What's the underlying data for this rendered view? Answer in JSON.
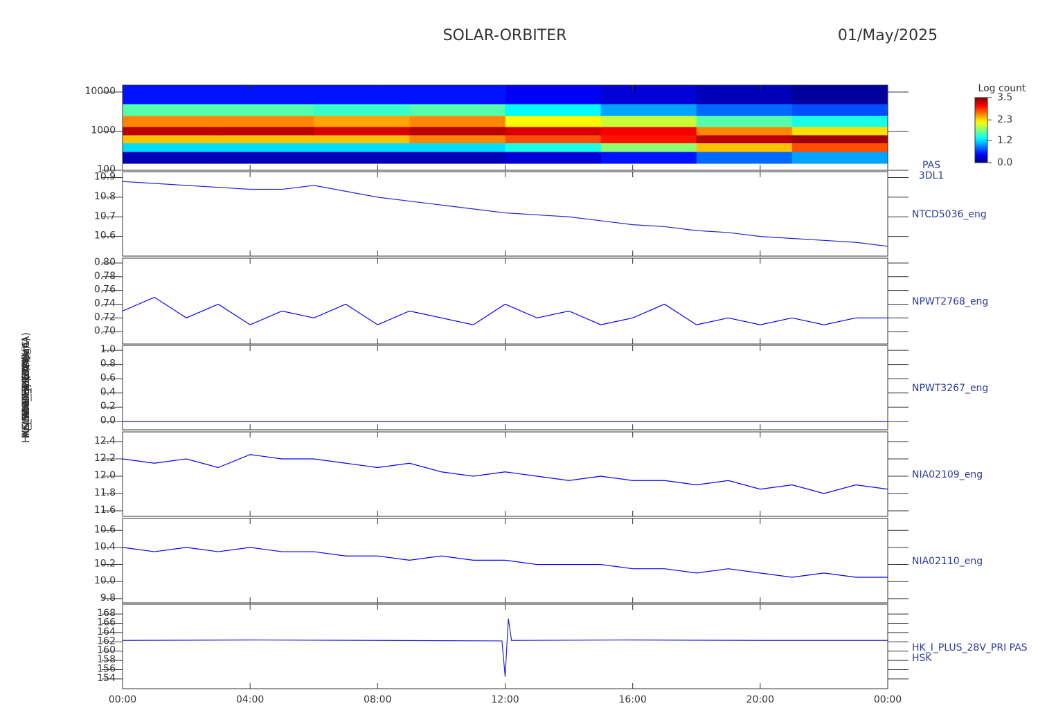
{
  "header": {
    "title": "SOLAR-ORBITER",
    "date": "01/May/2025"
  },
  "time_axis": {
    "xlim": [
      0,
      24
    ],
    "xticks": [
      {
        "value": 0,
        "label": "00:00"
      },
      {
        "value": 4,
        "label": "04:00"
      },
      {
        "value": 8,
        "label": "08:00"
      },
      {
        "value": 12,
        "label": "12:00"
      },
      {
        "value": 16,
        "label": "16:00"
      },
      {
        "value": 20,
        "label": "20:00"
      },
      {
        "value": 24,
        "label": "00:00"
      }
    ]
  },
  "chart_data": [
    {
      "type": "heatmap",
      "y_label": "Energy (eV)",
      "right_label": [
        "PAS",
        "3DL1"
      ],
      "log_y": true,
      "ylim": [
        100,
        15000
      ],
      "yticks": [
        100,
        1000,
        10000
      ],
      "x": [
        0,
        3,
        6,
        9,
        12,
        15,
        18,
        21,
        24
      ],
      "y_edges": [
        150,
        300,
        500,
        800,
        1300,
        2500,
        5000,
        15000
      ],
      "values": [
        [
          0.2,
          0.2,
          0.2,
          0.2,
          0.3,
          0.5,
          0.8,
          1.0
        ],
        [
          1.2,
          1.2,
          1.2,
          1.2,
          1.4,
          1.8,
          2.4,
          2.8
        ],
        [
          2.4,
          2.4,
          2.4,
          2.6,
          2.8,
          3.0,
          3.3,
          3.4
        ],
        [
          3.3,
          3.3,
          3.2,
          3.3,
          3.2,
          3.1,
          2.6,
          2.3
        ],
        [
          2.6,
          2.6,
          2.5,
          2.6,
          2.2,
          2.0,
          1.6,
          1.4
        ],
        [
          1.6,
          1.6,
          1.5,
          1.6,
          1.3,
          1.0,
          0.8,
          0.7
        ],
        [
          0.5,
          0.5,
          0.5,
          0.5,
          0.4,
          0.3,
          0.2,
          0.1
        ]
      ],
      "colorbar": {
        "label": "Log count",
        "zlim": [
          0,
          3.5
        ],
        "zticks": [
          {
            "value": 0,
            "label": "0.0"
          },
          {
            "value": 1.2,
            "label": "1.2"
          },
          {
            "value": 2.3,
            "label": "2.3"
          },
          {
            "value": 3.5,
            "label": "3.5"
          }
        ]
      }
    },
    {
      "type": "line",
      "y_label": "Approx Temp (DegC)",
      "ylim": [
        10.5,
        10.93
      ],
      "yticks": [
        10.6,
        10.7,
        10.8,
        10.9
      ],
      "x": [
        0,
        1,
        2,
        3,
        4,
        5,
        6,
        7,
        8,
        9,
        10,
        11,
        12,
        13,
        14,
        15,
        16,
        17,
        18,
        19,
        20,
        21,
        22,
        23,
        24
      ],
      "series": [
        {
          "name": "NTCD5036_eng",
          "color": "#2222cc",
          "values": [
            10.88,
            10.87,
            10.86,
            10.85,
            10.84,
            10.84,
            10.86,
            10.83,
            10.8,
            10.78,
            10.76,
            10.74,
            10.72,
            10.71,
            10.7,
            10.68,
            10.66,
            10.65,
            10.63,
            10.62,
            10.6,
            10.59,
            10.58,
            10.57,
            10.55
          ]
        }
      ]
    },
    {
      "type": "line",
      "y_label": "SWA-EAS TOP (V)",
      "ylim": [
        0.682,
        0.807
      ],
      "yticks": [
        {
          "value": 0.7,
          "label": "0.70"
        },
        {
          "value": 0.72,
          "label": "0.72"
        },
        {
          "value": 0.74,
          "label": "0.74"
        },
        {
          "value": 0.76,
          "label": "0.76"
        },
        {
          "value": 0.78,
          "label": "0.78"
        },
        {
          "value": 0.8,
          "label": "0.80"
        }
      ],
      "x": [
        0,
        1,
        2,
        3,
        4,
        5,
        6,
        7,
        8,
        9,
        10,
        11,
        12,
        13,
        14,
        15,
        16,
        17,
        18,
        19,
        20,
        21,
        22,
        23,
        24
      ],
      "series": [
        {
          "name": "NPWT2768_eng",
          "color": "#0000ff",
          "values": [
            0.73,
            0.75,
            0.72,
            0.74,
            0.71,
            0.73,
            0.72,
            0.74,
            0.71,
            0.73,
            0.72,
            0.71,
            0.74,
            0.72,
            0.73,
            0.71,
            0.72,
            0.74,
            0.71,
            0.72,
            0.71,
            0.72,
            0.71,
            0.72,
            0.72
          ]
        }
      ]
    },
    {
      "type": "line",
      "y_label": "SWA-EAS2 (V)",
      "ylim": [
        -0.12,
        1.07
      ],
      "yticks": [
        {
          "value": 0,
          "label": "0.0"
        },
        0.2,
        0.4,
        0.6,
        0.8,
        {
          "value": 1,
          "label": "1.0"
        }
      ],
      "x": [
        0,
        24
      ],
      "series": [
        {
          "name": "NPWT3267_eng",
          "color": "#0000ff",
          "values": [
            0,
            0
          ]
        }
      ]
    },
    {
      "type": "line",
      "y_label": "HK_IMON_THERM (mA)",
      "ylim": [
        11.536,
        12.512
      ],
      "yticks": [
        11.6,
        11.8,
        {
          "value": 12,
          "label": "12.0"
        },
        12.2,
        12.4
      ],
      "x": [
        0,
        1,
        2,
        3,
        4,
        5,
        6,
        7,
        8,
        9,
        10,
        11,
        12,
        13,
        14,
        15,
        16,
        17,
        18,
        19,
        20,
        21,
        22,
        23,
        24
      ],
      "series": [
        {
          "name": "NIA02109_eng",
          "color": "#0000ff",
          "values": [
            12.2,
            12.15,
            12.2,
            12.1,
            12.25,
            12.2,
            12.2,
            12.15,
            12.1,
            12.15,
            12.05,
            12.0,
            12.05,
            12.0,
            11.95,
            12.0,
            11.95,
            11.95,
            11.9,
            11.95,
            11.85,
            11.9,
            11.8,
            11.9,
            11.85
          ]
        }
      ]
    },
    {
      "type": "line",
      "y_label": "HK_IMON_PRIM (mA)",
      "ylim": [
        9.75,
        10.74
      ],
      "yticks": [
        9.8,
        {
          "value": 10,
          "label": "10.0"
        },
        10.2,
        10.4,
        10.6
      ],
      "x": [
        0,
        1,
        2,
        3,
        4,
        5,
        6,
        7,
        8,
        9,
        10,
        11,
        12,
        13,
        14,
        15,
        16,
        17,
        18,
        19,
        20,
        21,
        22,
        23,
        24
      ],
      "series": [
        {
          "name": "NIA02110_eng",
          "color": "#0000ff",
          "values": [
            10.4,
            10.35,
            10.4,
            10.35,
            10.4,
            10.35,
            10.35,
            10.3,
            10.3,
            10.25,
            10.3,
            10.25,
            10.25,
            10.2,
            10.2,
            10.2,
            10.15,
            10.15,
            10.1,
            10.15,
            10.1,
            10.05,
            10.1,
            10.05,
            10.05
          ]
        }
      ]
    },
    {
      "type": "line",
      "y_label": "PAS_HK (mA)",
      "ylim": [
        151.9,
        170.1
      ],
      "yticks": [
        154,
        156,
        158,
        160,
        162,
        164,
        166,
        168
      ],
      "instrument": "HSK",
      "x": [
        0,
        4,
        8,
        11.9,
        12.0,
        12.1,
        12.2,
        16,
        20,
        24
      ],
      "series": [
        {
          "name": "HK_I_PLUS_28V_PRI PAS",
          "color": "#2222cc",
          "values": [
            162.3,
            162.4,
            162.3,
            162.2,
            154.5,
            167.0,
            162.3,
            162.4,
            162.3,
            162.3
          ]
        }
      ]
    }
  ]
}
